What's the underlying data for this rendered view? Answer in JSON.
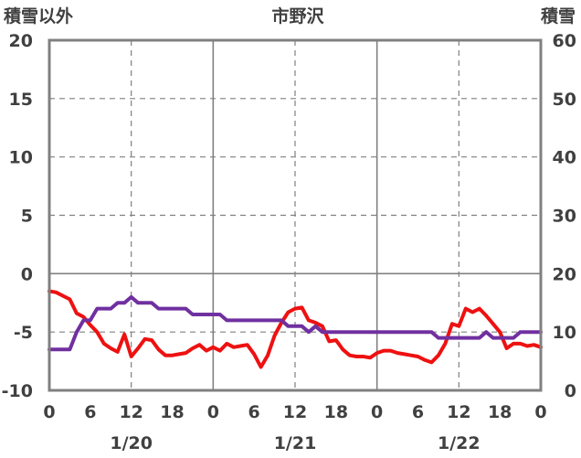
{
  "chart_data": {
    "type": "line",
    "title": "市野沢",
    "left_axis_label": "積雪以外",
    "right_axis_label": "積雪",
    "ylim_left": [
      -10,
      20
    ],
    "ylim_right": [
      0,
      60
    ],
    "left_ticks": [
      "20",
      "15",
      "10",
      "5",
      "0",
      "-5",
      "-10"
    ],
    "right_ticks": [
      "60",
      "50",
      "40",
      "30",
      "20",
      "10",
      "0"
    ],
    "x_tick_labels": [
      "0",
      "6",
      "12",
      "18",
      "0",
      "6",
      "12",
      "18",
      "0",
      "6",
      "12",
      "18",
      "0"
    ],
    "date_labels": [
      "1/20",
      "1/21",
      "1/22"
    ],
    "colors": {
      "temperature": "#ee1111",
      "snow_depth": "#7030a0",
      "axis": "#808080",
      "grid": "#808080"
    },
    "series": [
      {
        "axis": "left",
        "color": "#ee1111",
        "points": [
          [
            0,
            -1.5
          ],
          [
            1,
            -1.6
          ],
          [
            2,
            -1.9
          ],
          [
            3,
            -2.2
          ],
          [
            4,
            -3.4
          ],
          [
            5,
            -3.7
          ],
          [
            6,
            -4.4
          ],
          [
            7,
            -5.0
          ],
          [
            8,
            -6.0
          ],
          [
            9,
            -6.4
          ],
          [
            10,
            -6.7
          ],
          [
            11,
            -5.2
          ],
          [
            12,
            -7.1
          ],
          [
            13,
            -6.4
          ],
          [
            14,
            -5.6
          ],
          [
            15,
            -5.7
          ],
          [
            16,
            -6.5
          ],
          [
            17,
            -7.0
          ],
          [
            18,
            -7.0
          ],
          [
            19,
            -6.9
          ],
          [
            20,
            -6.8
          ],
          [
            21,
            -6.4
          ],
          [
            22,
            -6.1
          ],
          [
            23,
            -6.6
          ],
          [
            24,
            -6.3
          ],
          [
            25,
            -6.6
          ],
          [
            26,
            -6.0
          ],
          [
            27,
            -6.3
          ],
          [
            28,
            -6.2
          ],
          [
            29,
            -6.1
          ],
          [
            30,
            -6.9
          ],
          [
            31,
            -8.0
          ],
          [
            32,
            -7.0
          ],
          [
            33,
            -5.3
          ],
          [
            34,
            -4.2
          ],
          [
            35,
            -3.3
          ],
          [
            36,
            -3.0
          ],
          [
            37,
            -2.9
          ],
          [
            38,
            -4.0
          ],
          [
            39,
            -4.2
          ],
          [
            40,
            -4.5
          ],
          [
            41,
            -5.8
          ],
          [
            42,
            -5.7
          ],
          [
            43,
            -6.5
          ],
          [
            44,
            -7.0
          ],
          [
            45,
            -7.1
          ],
          [
            46,
            -7.1
          ],
          [
            47,
            -7.2
          ],
          [
            48,
            -6.8
          ],
          [
            49,
            -6.6
          ],
          [
            50,
            -6.6
          ],
          [
            51,
            -6.8
          ],
          [
            52,
            -6.9
          ],
          [
            53,
            -7.0
          ],
          [
            54,
            -7.1
          ],
          [
            55,
            -7.4
          ],
          [
            56,
            -7.6
          ],
          [
            57,
            -7.0
          ],
          [
            58,
            -6.0
          ],
          [
            59,
            -4.3
          ],
          [
            60,
            -4.5
          ],
          [
            61,
            -3.0
          ],
          [
            62,
            -3.3
          ],
          [
            63,
            -3.0
          ],
          [
            64,
            -3.6
          ],
          [
            65,
            -4.3
          ],
          [
            66,
            -5.0
          ],
          [
            67,
            -6.4
          ],
          [
            68,
            -6.0
          ],
          [
            69,
            -6.0
          ],
          [
            70,
            -6.2
          ],
          [
            71,
            -6.1
          ],
          [
            72,
            -6.3
          ]
        ]
      },
      {
        "axis": "right",
        "color": "#7030a0",
        "points": [
          [
            0,
            7
          ],
          [
            1,
            7
          ],
          [
            2,
            7
          ],
          [
            3,
            7
          ],
          [
            4,
            10
          ],
          [
            5,
            12
          ],
          [
            6,
            12
          ],
          [
            7,
            14
          ],
          [
            8,
            14
          ],
          [
            9,
            14
          ],
          [
            10,
            15
          ],
          [
            11,
            15
          ],
          [
            12,
            16
          ],
          [
            13,
            15
          ],
          [
            14,
            15
          ],
          [
            15,
            15
          ],
          [
            16,
            14
          ],
          [
            17,
            14
          ],
          [
            18,
            14
          ],
          [
            19,
            14
          ],
          [
            20,
            14
          ],
          [
            21,
            13
          ],
          [
            22,
            13
          ],
          [
            23,
            13
          ],
          [
            24,
            13
          ],
          [
            25,
            13
          ],
          [
            26,
            12
          ],
          [
            27,
            12
          ],
          [
            28,
            12
          ],
          [
            29,
            12
          ],
          [
            30,
            12
          ],
          [
            31,
            12
          ],
          [
            32,
            12
          ],
          [
            33,
            12
          ],
          [
            34,
            12
          ],
          [
            35,
            11
          ],
          [
            36,
            11
          ],
          [
            37,
            11
          ],
          [
            38,
            10
          ],
          [
            39,
            11
          ],
          [
            40,
            10
          ],
          [
            41,
            10
          ],
          [
            42,
            10
          ],
          [
            43,
            10
          ],
          [
            44,
            10
          ],
          [
            45,
            10
          ],
          [
            46,
            10
          ],
          [
            47,
            10
          ],
          [
            48,
            10
          ],
          [
            49,
            10
          ],
          [
            50,
            10
          ],
          [
            51,
            10
          ],
          [
            52,
            10
          ],
          [
            53,
            10
          ],
          [
            54,
            10
          ],
          [
            55,
            10
          ],
          [
            56,
            10
          ],
          [
            57,
            9
          ],
          [
            58,
            9
          ],
          [
            59,
            9
          ],
          [
            60,
            9
          ],
          [
            61,
            9
          ],
          [
            62,
            9
          ],
          [
            63,
            9
          ],
          [
            64,
            10
          ],
          [
            65,
            9
          ],
          [
            66,
            9
          ],
          [
            67,
            9
          ],
          [
            68,
            9
          ],
          [
            69,
            10
          ],
          [
            70,
            10
          ],
          [
            71,
            10
          ],
          [
            72,
            10
          ]
        ]
      }
    ]
  }
}
